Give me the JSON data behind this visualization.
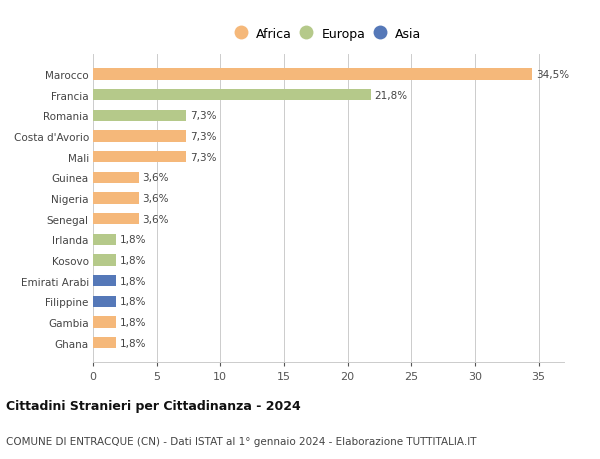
{
  "countries": [
    "Ghana",
    "Gambia",
    "Filippine",
    "Emirati Arabi",
    "Kosovo",
    "Irlanda",
    "Senegal",
    "Nigeria",
    "Guinea",
    "Mali",
    "Costa d'Avorio",
    "Romania",
    "Francia",
    "Marocco"
  ],
  "values": [
    1.8,
    1.8,
    1.8,
    1.8,
    1.8,
    1.8,
    3.6,
    3.6,
    3.6,
    7.3,
    7.3,
    7.3,
    21.8,
    34.5
  ],
  "continents": [
    "Africa",
    "Africa",
    "Asia",
    "Asia",
    "Europa",
    "Europa",
    "Africa",
    "Africa",
    "Africa",
    "Africa",
    "Africa",
    "Europa",
    "Europa",
    "Africa"
  ],
  "colors": {
    "Africa": "#F5B87A",
    "Europa": "#B5C98A",
    "Asia": "#5578B8"
  },
  "legend_items": [
    "Africa",
    "Europa",
    "Asia"
  ],
  "xlim": [
    0,
    37
  ],
  "xticks": [
    0,
    5,
    10,
    15,
    20,
    25,
    30,
    35
  ],
  "title": "Cittadini Stranieri per Cittadinanza - 2024",
  "subtitle": "COMUNE DI ENTRACQUE (CN) - Dati ISTAT al 1° gennaio 2024 - Elaborazione TUTTITALIA.IT",
  "bar_height": 0.55,
  "background_color": "#ffffff",
  "grid_color": "#cccccc",
  "label_fontsize": 7.5,
  "ytick_fontsize": 7.5,
  "xtick_fontsize": 8,
  "title_fontsize": 9,
  "subtitle_fontsize": 7.5,
  "legend_fontsize": 9
}
